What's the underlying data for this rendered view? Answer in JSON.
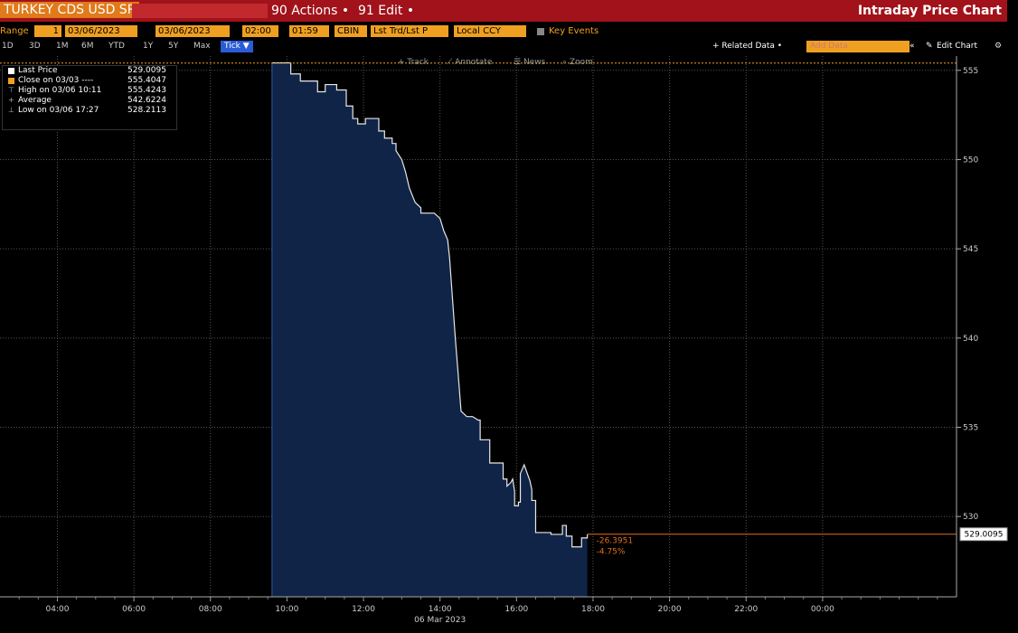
{
  "header": {
    "security": "TURKEY CDS USD SR",
    "actions_label": "90 Actions •",
    "edit_label": "91 Edit •",
    "title": "Intraday Price Chart"
  },
  "controls": {
    "range_label": "Range",
    "range_start_field": "1",
    "start_date": "03/06/2023",
    "end_date": "03/06/2023",
    "start_time": "02:00",
    "end_time": "01:59",
    "source": "CBIN",
    "price_field": "Lst Trd/Lst P",
    "currency": "Local CCY",
    "key_events": "Key Events",
    "periods": [
      "1D",
      "3D",
      "1M",
      "6M",
      "YTD",
      "1Y",
      "5Y",
      "Max"
    ],
    "tick_label": "Tick ▼",
    "related_data": "+ Related Data •",
    "add_data_placeholder": "Add Data",
    "edit_chart": "Edit Chart",
    "tools": [
      "Track",
      "Annotate",
      "News",
      "Zoom"
    ]
  },
  "legend": [
    {
      "label": "Last Price",
      "value": "529.0095",
      "color": "#ffffff"
    },
    {
      "label": "Close on 03/03 ----",
      "value": "555.4047",
      "color": "#f0a020"
    },
    {
      "label": "High on 03/06 10:11",
      "value": "555.4243",
      "color": "#aaaaaa"
    },
    {
      "label": "Average",
      "value": "542.6224",
      "color": "#aaaaaa"
    },
    {
      "label": "Low on 03/06 17:27",
      "value": "528.2113",
      "color": "#aaaaaa"
    }
  ],
  "annotations": {
    "change_abs": "-26.3951",
    "change_pct": "-4.75%",
    "last_price_tag": "529.0095"
  },
  "chart_data": {
    "type": "area",
    "title": "",
    "xlabel": "06 Mar 2023",
    "ylabel": "",
    "x_ticks": [
      "04:00",
      "06:00",
      "08:00",
      "10:00",
      "12:00",
      "14:00",
      "16:00",
      "18:00",
      "20:00",
      "22:00",
      "00:00"
    ],
    "y_ticks": [
      530,
      535,
      540,
      545,
      550,
      555
    ],
    "ylim": [
      525.5,
      555.8
    ],
    "xlim_hours": [
      2.5,
      27.5
    ],
    "reference_close": 555.4047,
    "last_price": 529.0095,
    "grid": true,
    "series": [
      {
        "name": "Last Price",
        "x": [
          9.61,
          10.1,
          10.1,
          10.35,
          10.35,
          10.8,
          10.8,
          11.0,
          11.0,
          11.3,
          11.3,
          11.55,
          11.55,
          11.72,
          11.72,
          11.85,
          11.85,
          12.05,
          12.05,
          12.4,
          12.4,
          12.55,
          12.55,
          12.75,
          12.75,
          12.85,
          12.85,
          13.0,
          13.1,
          13.2,
          13.35,
          13.5,
          13.5,
          13.85,
          14.0,
          14.1,
          14.2,
          14.25,
          14.3,
          14.4,
          14.5,
          14.55,
          14.7,
          14.85,
          15.0,
          15.05,
          15.05,
          15.3,
          15.3,
          15.65,
          15.65,
          15.75,
          15.75,
          15.85,
          15.9,
          15.95,
          15.95,
          16.05,
          16.05,
          16.1,
          16.1,
          16.2,
          16.35,
          16.4,
          16.4,
          16.5,
          16.5,
          16.9,
          16.9,
          17.2,
          17.2,
          17.3,
          17.3,
          17.45,
          17.45,
          17.7,
          17.7,
          17.85,
          17.85
        ],
        "y": [
          555.42,
          555.42,
          554.8,
          554.8,
          554.4,
          554.4,
          553.8,
          553.8,
          554.2,
          554.2,
          553.9,
          553.9,
          553.0,
          553.0,
          552.3,
          552.3,
          552.0,
          552.0,
          552.3,
          552.3,
          551.6,
          551.6,
          551.2,
          551.2,
          550.9,
          550.9,
          550.5,
          550.0,
          549.3,
          548.4,
          547.6,
          547.3,
          547.0,
          547.0,
          546.7,
          546.0,
          545.5,
          544.5,
          543.0,
          540.0,
          537.3,
          535.9,
          535.6,
          535.6,
          535.4,
          535.4,
          534.3,
          534.3,
          533.0,
          533.0,
          532.1,
          532.1,
          531.7,
          531.9,
          532.1,
          531.4,
          530.6,
          530.6,
          530.8,
          530.8,
          532.4,
          532.9,
          532.0,
          531.5,
          530.9,
          530.9,
          529.1,
          529.1,
          529.0,
          529.0,
          529.5,
          529.5,
          528.9,
          528.9,
          528.3,
          528.3,
          528.8,
          528.8,
          529.0
        ]
      }
    ]
  }
}
